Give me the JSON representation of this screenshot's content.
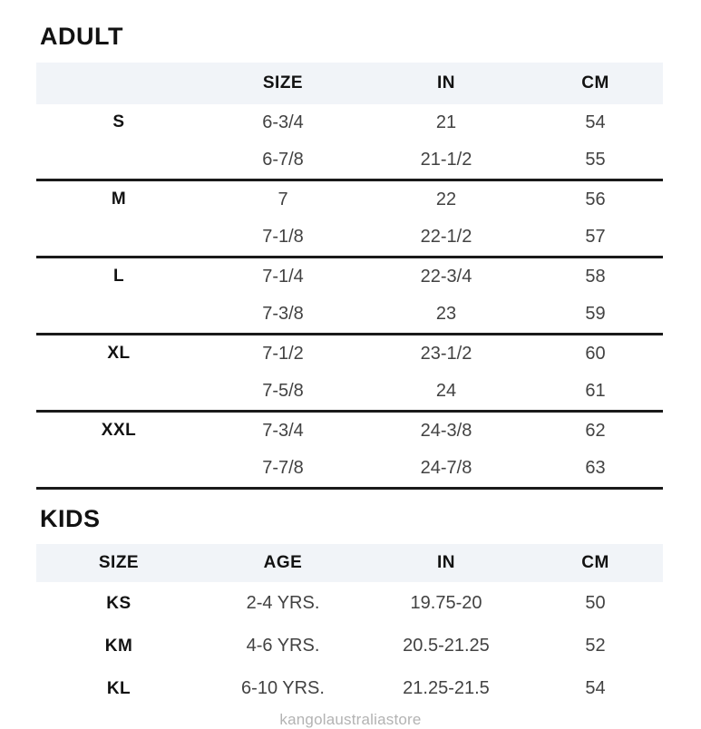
{
  "adult": {
    "heading": "ADULT",
    "columns": [
      "",
      "SIZE",
      "IN",
      "CM"
    ],
    "rows": [
      {
        "size": "S",
        "hat": "6-3/4",
        "in": "21",
        "cm": "54"
      },
      {
        "size": "",
        "hat": "6-7/8",
        "in": "21-1/2",
        "cm": "55"
      },
      {
        "size": "M",
        "hat": "7",
        "in": "22",
        "cm": "56"
      },
      {
        "size": "",
        "hat": "7-1/8",
        "in": "22-1/2",
        "cm": "57"
      },
      {
        "size": "L",
        "hat": "7-1/4",
        "in": "22-3/4",
        "cm": "58"
      },
      {
        "size": "",
        "hat": "7-3/8",
        "in": "23",
        "cm": "59"
      },
      {
        "size": "XL",
        "hat": "7-1/2",
        "in": "23-1/2",
        "cm": "60"
      },
      {
        "size": "",
        "hat": "7-5/8",
        "in": "24",
        "cm": "61"
      },
      {
        "size": "XXL",
        "hat": "7-3/4",
        "in": "24-3/8",
        "cm": "62"
      },
      {
        "size": "",
        "hat": "7-7/8",
        "in": "24-7/8",
        "cm": "63"
      }
    ]
  },
  "kids": {
    "heading": "KIDS",
    "columns": [
      "SIZE",
      "AGE",
      "IN",
      "CM"
    ],
    "rows": [
      {
        "size": "KS",
        "age": "2-4 YRS.",
        "in": "19.75-20",
        "cm": "50"
      },
      {
        "size": "KM",
        "age": "4-6 YRS.",
        "in": "20.5-21.25",
        "cm": "52"
      },
      {
        "size": "KL",
        "age": "6-10 YRS.",
        "in": "21.25-21.5",
        "cm": "54"
      }
    ]
  },
  "watermark": "kangolaustraliastore",
  "colors": {
    "header_band": "#f1f4f8",
    "heading_text": "#121212",
    "data_text": "#424242",
    "separator_line": "#1a1a1a",
    "watermark_text": "#b3b3b3"
  }
}
